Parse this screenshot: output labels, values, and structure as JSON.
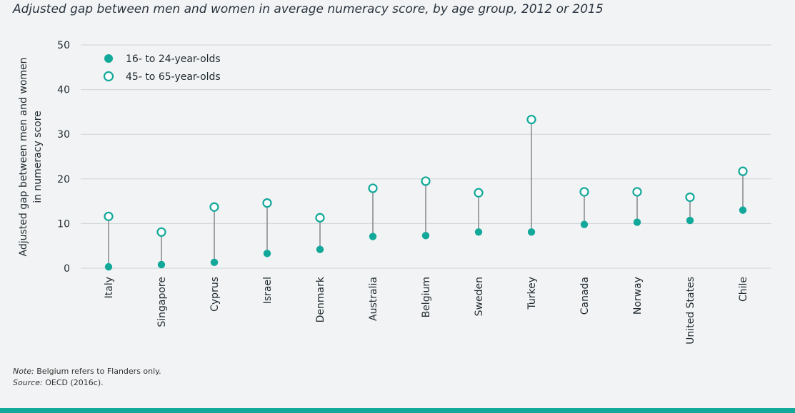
{
  "title": "Adjusted gap between men and women in average numeracy score, by age group, 2012 or 2015",
  "note_label": "Note:",
  "note_text": "Belgium refers to Flanders only.",
  "source_label": "Source:",
  "source_text": "OECD (2016c).",
  "colors": {
    "accent": "#12a89a",
    "stem": "#8a8f93",
    "grid": "#cfd3d6"
  },
  "chart_data": {
    "type": "scatter",
    "ylabel_line1": "Adjusted gap between men and women",
    "ylabel_line2": "in numeracy score",
    "ylim": [
      0,
      50
    ],
    "yticks": [
      0,
      10,
      20,
      30,
      40,
      50
    ],
    "grid": true,
    "legend_position": "top-left",
    "categories": [
      "Italy",
      "Singapore",
      "Cyprus",
      "Israel",
      "Denmark",
      "Australia",
      "Belgium",
      "Sweden",
      "Turkey",
      "Canada",
      "Norway",
      "United States",
      "Chile"
    ],
    "series": [
      {
        "name": "16- to 24-year-olds",
        "marker": "filled",
        "values": [
          0.3,
          0.8,
          1.3,
          3.3,
          4.2,
          7.1,
          7.3,
          8.1,
          8.1,
          9.8,
          10.3,
          10.7,
          13.0
        ]
      },
      {
        "name": "45- to 65-year-olds",
        "marker": "hollow",
        "values": [
          11.6,
          8.1,
          13.7,
          14.6,
          11.3,
          17.9,
          19.5,
          16.9,
          33.3,
          17.1,
          17.1,
          15.9,
          21.7
        ]
      }
    ]
  }
}
